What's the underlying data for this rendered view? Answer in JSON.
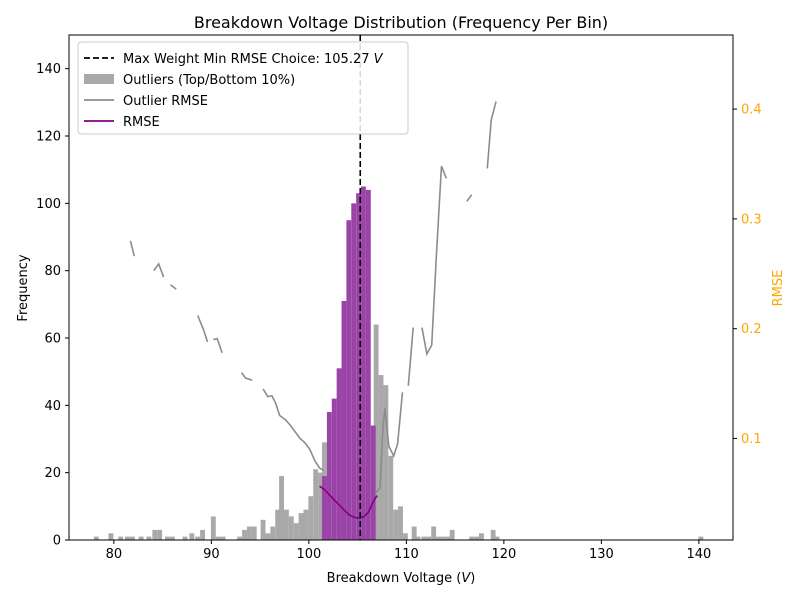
{
  "chart_data": {
    "type": "bar",
    "title": "Breakdown Voltage Distribution (Frequency Per Bin)",
    "xlabel": "Breakdown Voltage (V)",
    "xlabel_parts": {
      "main": "Breakdown Voltage (",
      "italic": "V",
      "end": ")"
    },
    "ylabel": "Frequency",
    "ylabel_right": "RMSE",
    "xlim": [
      75.4,
      143.5
    ],
    "ylim": [
      0,
      150
    ],
    "ylim_right": [
      0.0075,
      0.4675
    ],
    "x_ticks": [
      80,
      90,
      100,
      110,
      120,
      130,
      140
    ],
    "y_ticks": [
      0,
      20,
      40,
      60,
      80,
      100,
      120,
      140
    ],
    "y_ticks_right": [
      0.1,
      0.2,
      0.3,
      0.4
    ],
    "colors": {
      "outlier_bars": "#a9a9a9",
      "inlier_bars": "#9b44a8",
      "outlier_rmse": "#8c8c8c",
      "rmse": "#800080",
      "vline": "#000000",
      "right_axis": "#ffa500"
    },
    "vline": {
      "x": 105.27
    },
    "legend": {
      "placement": "top-left",
      "entries": [
        {
          "label_main": "Max Weight Min RMSE Choice: 105.27 ",
          "label_italic": "V",
          "style": "dashed-line"
        },
        {
          "label_main": "Outliers (Top/Bottom 10%)",
          "label_italic": "",
          "style": "patch"
        },
        {
          "label_main": "Outlier RMSE",
          "label_italic": "",
          "style": "grey-line"
        },
        {
          "label_main": "RMSE",
          "label_italic": "",
          "style": "purple-line"
        }
      ]
    },
    "bin_width": 0.5,
    "outlier_bins": [
      [
        78.2,
        1
      ],
      [
        79.7,
        2
      ],
      [
        80.7,
        1
      ],
      [
        81.4,
        1
      ],
      [
        81.9,
        1
      ],
      [
        82.8,
        1
      ],
      [
        83.6,
        1
      ],
      [
        84.2,
        3
      ],
      [
        84.7,
        3
      ],
      [
        85.5,
        1
      ],
      [
        86.0,
        1
      ],
      [
        87.3,
        1
      ],
      [
        88.0,
        2
      ],
      [
        88.6,
        1
      ],
      [
        89.1,
        3
      ],
      [
        90.2,
        7
      ],
      [
        90.7,
        1
      ],
      [
        91.2,
        1
      ],
      [
        92.9,
        1
      ],
      [
        93.4,
        3
      ],
      [
        93.9,
        4
      ],
      [
        94.4,
        4
      ],
      [
        95.3,
        6
      ],
      [
        95.8,
        2
      ],
      [
        96.3,
        4
      ],
      [
        96.8,
        9
      ],
      [
        97.2,
        19
      ],
      [
        97.7,
        9
      ],
      [
        98.2,
        7
      ],
      [
        98.7,
        5
      ],
      [
        99.2,
        8
      ],
      [
        99.7,
        9
      ],
      [
        100.2,
        13
      ],
      [
        100.7,
        21
      ],
      [
        101.2,
        20
      ],
      [
        101.6,
        29
      ],
      [
        106.9,
        64
      ],
      [
        107.4,
        49
      ],
      [
        107.9,
        46
      ],
      [
        108.4,
        25
      ],
      [
        108.9,
        9
      ],
      [
        109.4,
        10
      ],
      [
        109.9,
        2
      ],
      [
        110.8,
        4
      ],
      [
        111.2,
        1
      ],
      [
        111.8,
        1
      ],
      [
        112.3,
        1
      ],
      [
        112.8,
        4
      ],
      [
        113.3,
        1
      ],
      [
        113.8,
        1
      ],
      [
        114.3,
        1
      ],
      [
        114.7,
        3
      ],
      [
        116.7,
        1
      ],
      [
        117.2,
        1
      ],
      [
        117.7,
        2
      ],
      [
        118.9,
        3
      ],
      [
        119.3,
        1
      ],
      [
        140.2,
        1
      ]
    ],
    "inlier_bins": [
      [
        101.6,
        19
      ],
      [
        102.1,
        38
      ],
      [
        102.6,
        42
      ],
      [
        103.1,
        51
      ],
      [
        103.6,
        71
      ],
      [
        104.1,
        95
      ],
      [
        104.6,
        100
      ],
      [
        105.1,
        103
      ],
      [
        105.6,
        105
      ],
      [
        106.1,
        104
      ],
      [
        106.6,
        34
      ]
    ],
    "outlier_rmse_segments": [
      [
        [
          81.7,
          0.28
        ],
        [
          82.1,
          0.266
        ]
      ],
      [
        [
          84.1,
          0.253
        ],
        [
          84.6,
          0.259
        ],
        [
          85.1,
          0.247
        ]
      ],
      [
        [
          85.8,
          0.24
        ],
        [
          86.4,
          0.236
        ]
      ],
      [
        [
          88.6,
          0.212
        ],
        [
          89.2,
          0.199
        ],
        [
          89.6,
          0.188
        ]
      ],
      [
        [
          90.2,
          0.19
        ],
        [
          90.6,
          0.191
        ],
        [
          91.1,
          0.178
        ]
      ],
      [
        [
          93.1,
          0.16
        ],
        [
          93.5,
          0.155
        ],
        [
          94.2,
          0.153
        ]
      ],
      [
        [
          95.3,
          0.145
        ],
        [
          95.8,
          0.138
        ],
        [
          96.2,
          0.139
        ],
        [
          96.6,
          0.132
        ],
        [
          97.0,
          0.121
        ],
        [
          97.6,
          0.117
        ],
        [
          98.1,
          0.112
        ],
        [
          98.6,
          0.106
        ],
        [
          99.1,
          0.1
        ],
        [
          99.6,
          0.096
        ],
        [
          100.1,
          0.09
        ],
        [
          100.6,
          0.08
        ],
        [
          101.1,
          0.073
        ],
        [
          101.5,
          0.071
        ]
      ],
      [
        [
          106.8,
          0.05
        ],
        [
          107.3,
          0.055
        ],
        [
          107.6,
          0.11
        ],
        [
          107.8,
          0.128
        ],
        [
          108.2,
          0.093
        ],
        [
          108.7,
          0.084
        ],
        [
          109.1,
          0.095
        ],
        [
          109.6,
          0.142
        ]
      ],
      [
        [
          110.2,
          0.148
        ],
        [
          110.7,
          0.201
        ]
      ],
      [
        [
          111.6,
          0.201
        ],
        [
          112.1,
          0.177
        ],
        [
          112.6,
          0.185
        ],
        [
          113.1,
          0.27
        ],
        [
          113.6,
          0.348
        ],
        [
          114.1,
          0.337
        ]
      ],
      [
        [
          116.2,
          0.316
        ],
        [
          116.7,
          0.322
        ]
      ],
      [
        [
          118.3,
          0.346
        ],
        [
          118.7,
          0.39
        ],
        [
          119.2,
          0.407
        ]
      ]
    ],
    "rmse_line": [
      [
        101.1,
        0.0565
      ],
      [
        101.6,
        0.0535
      ],
      [
        102.1,
        0.0487
      ],
      [
        102.6,
        0.044
      ],
      [
        103.1,
        0.0395
      ],
      [
        103.6,
        0.035
      ],
      [
        104.1,
        0.0305
      ],
      [
        104.6,
        0.0285
      ],
      [
        105.1,
        0.0273
      ],
      [
        105.6,
        0.0285
      ],
      [
        106.1,
        0.0325
      ],
      [
        106.6,
        0.0425
      ],
      [
        107.0,
        0.048
      ]
    ]
  }
}
